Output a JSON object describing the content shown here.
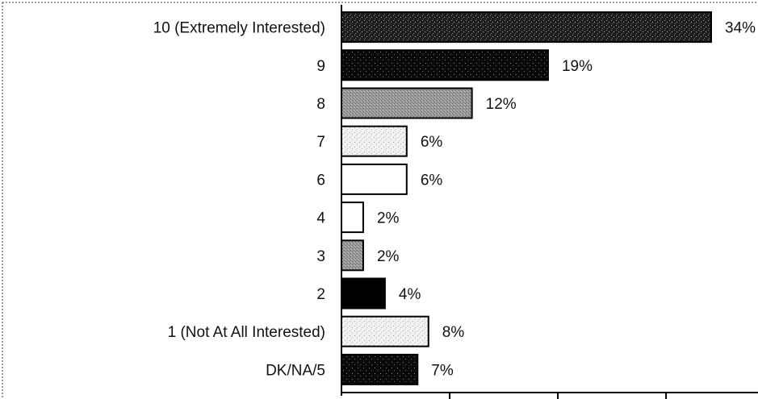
{
  "chart_data": {
    "type": "bar",
    "orientation": "horizontal",
    "categories": [
      "10 (Extremely Interested)",
      "9",
      "8",
      "7",
      "6",
      "4",
      "3",
      "2",
      "1 (Not At All Interested)",
      "DK/NA/5"
    ],
    "values": [
      34,
      19,
      12,
      6,
      6,
      2,
      2,
      4,
      8,
      7
    ],
    "value_labels": [
      "34%",
      "19%",
      "12%",
      "6%",
      "6%",
      "2%",
      "2%",
      "4%",
      "8%",
      "7%"
    ],
    "xlim": [
      0,
      35
    ],
    "grid": false,
    "bar_fills": [
      "dark-stipple",
      "black-stipple",
      "gray-stipple",
      "light-stipple",
      "white",
      "white",
      "gray-stipple",
      "black",
      "light-stipple",
      "black-stipple"
    ],
    "colors": {
      "black": "#000000",
      "dark": "#2a2a2a",
      "gray": "#8f8f8f",
      "light": "#dcdcdc",
      "white": "#ffffff"
    }
  }
}
